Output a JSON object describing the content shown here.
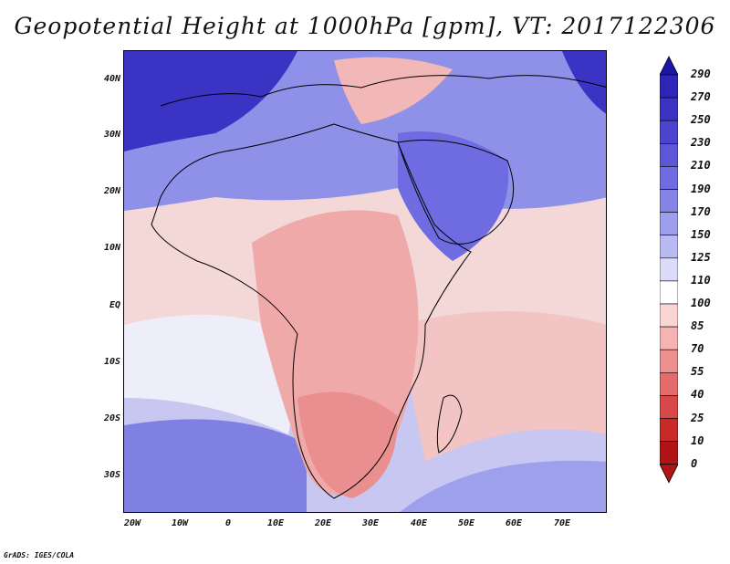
{
  "title": "Geopotential Height at 1000hPa [gpm], VT: 2017122306",
  "credit": "GrADS: IGES/COLA",
  "map": {
    "lon_range": [
      -20,
      80
    ],
    "lat_range": [
      -36,
      46
    ],
    "lat_labels": [
      "40N",
      "30N",
      "20N",
      "10N",
      "EQ",
      "10S",
      "20S",
      "30S"
    ],
    "lon_labels": [
      "20W",
      "10W",
      "0",
      "10E",
      "20E",
      "30E",
      "40E",
      "50E",
      "60E",
      "70E"
    ]
  },
  "colorbar": {
    "levels": [
      "290",
      "270",
      "250",
      "230",
      "210",
      "190",
      "170",
      "150",
      "125",
      "110",
      "100",
      "85",
      "70",
      "55",
      "40",
      "25",
      "10",
      "0"
    ],
    "colors": [
      "#1c16a8",
      "#2c25b8",
      "#3a33c4",
      "#4a44d0",
      "#5b57d8",
      "#6e6ce0",
      "#8584e6",
      "#9e9eec",
      "#babaf2",
      "#dcdcfa",
      "#ffffff",
      "#fbd4d4",
      "#f6b3b3",
      "#ee9090",
      "#e46b6b",
      "#d84848",
      "#c82a2a",
      "#b01414"
    ]
  }
}
